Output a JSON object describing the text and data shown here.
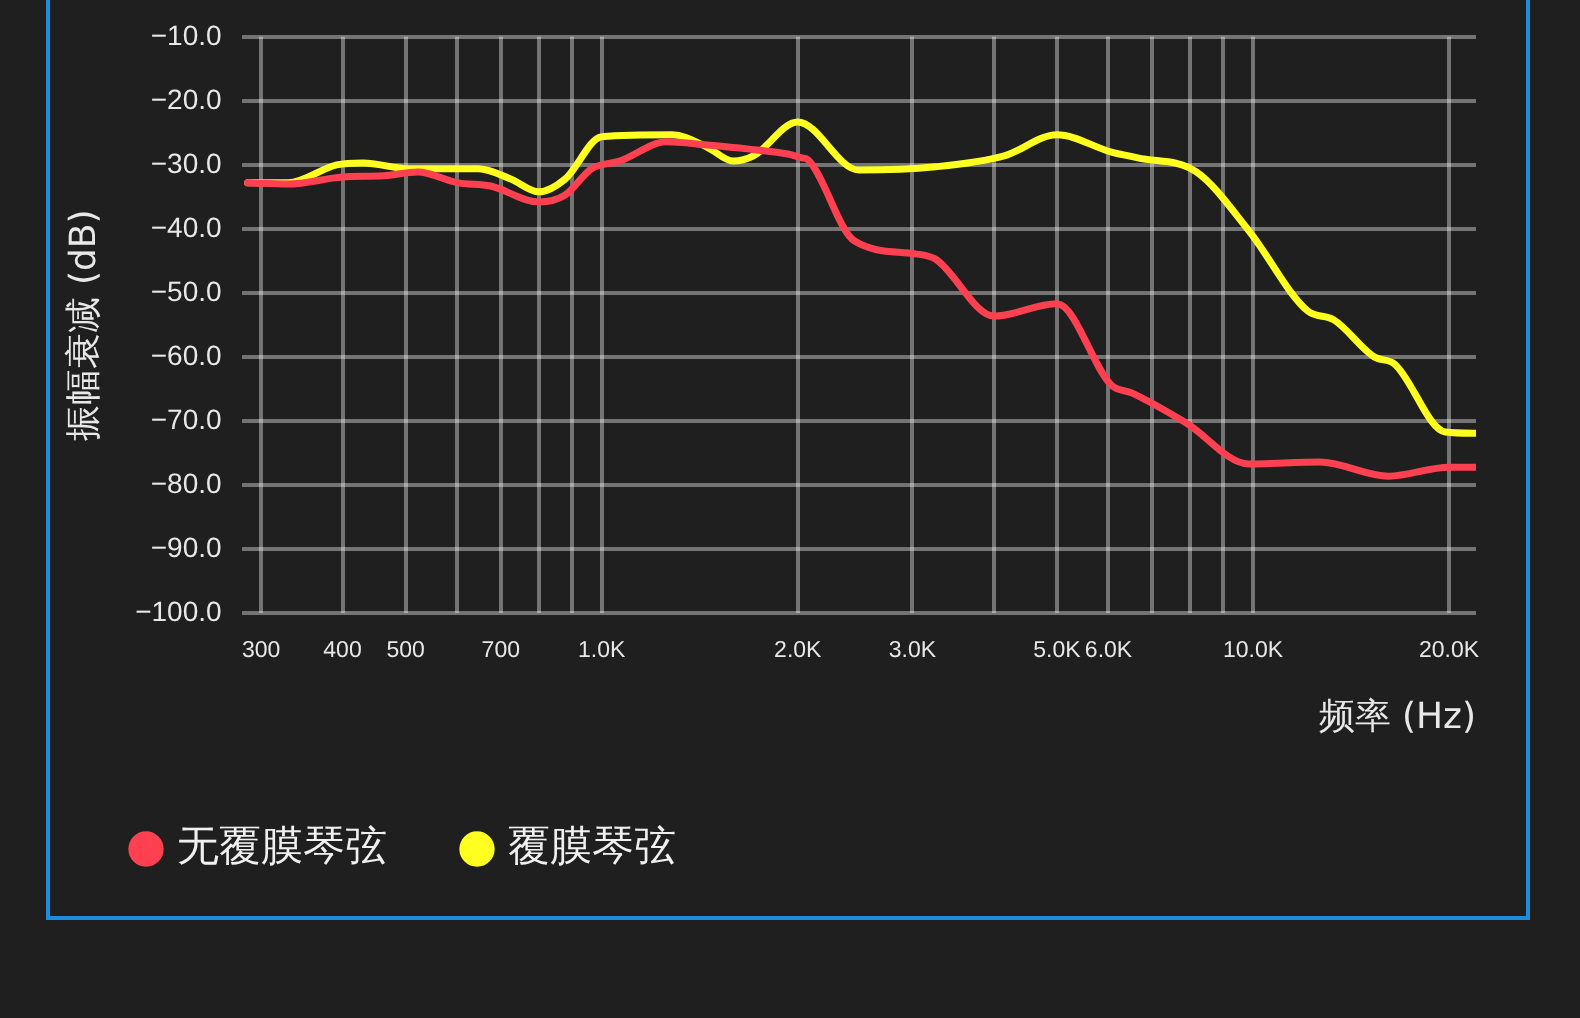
{
  "chart_data": {
    "type": "line",
    "xlabel": "频率 (Hz)",
    "ylabel": "振幅衰减 (dB)",
    "log": "x",
    "grid": true,
    "legend": "bottom left",
    "marker": "none",
    "line_style": "solid",
    "xlim": [
      280,
      22000
    ],
    "ylim": [
      -100,
      -10
    ],
    "xticks": [
      300,
      400,
      500,
      {
        "value": 600,
        "label": null
      },
      700,
      {
        "value": 800,
        "label": null
      },
      {
        "value": 900,
        "label": null
      },
      {
        "value": 1000,
        "label": "1.0K"
      },
      {
        "value": 2000,
        "label": "2.0K"
      },
      {
        "value": 3000,
        "label": "3.0K"
      },
      {
        "value": 4000,
        "label": null
      },
      {
        "value": 5000,
        "label": "5.0K"
      },
      {
        "value": 6000,
        "label": "6.0K"
      },
      {
        "value": 7000,
        "label": null
      },
      {
        "value": 8000,
        "label": null
      },
      {
        "value": 9000,
        "label": null
      },
      {
        "value": 10000,
        "label": "10.0K"
      },
      {
        "value": 20000,
        "label": "20.0K"
      }
    ],
    "yticks": [
      {
        "value": -10,
        "label": "−10.0"
      },
      {
        "value": -20,
        "label": "−20.0"
      },
      {
        "value": -30,
        "label": "−30.0"
      },
      {
        "value": -40,
        "label": "−40.0"
      },
      {
        "value": -50,
        "label": "−50.0"
      },
      {
        "value": -60,
        "label": "−60.0"
      },
      {
        "value": -70,
        "label": "−70.0"
      },
      {
        "value": -80,
        "label": "−80.0"
      },
      {
        "value": -90,
        "label": "−90.0"
      },
      {
        "value": -100,
        "label": "−100.0"
      }
    ],
    "series": [
      {
        "name": "无覆膜琴弦",
        "color": "#ff4050",
        "x": [
          286,
          330,
          400,
          462,
          522,
          602,
          675,
          801,
          879,
          965,
          1066,
          1257,
          1450,
          1673,
          1931,
          2030,
          2074,
          2445,
          3030,
          3253,
          4005,
          5000,
          6063,
          6512,
          7898,
          9858,
          12660,
          16150,
          20000,
          21960
        ],
        "values": [
          -32.8,
          -33,
          -31.9,
          -31.7,
          -31.1,
          -32.8,
          -33.3,
          -35.8,
          -34.7,
          -30.6,
          -29.4,
          -26.4,
          -26.9,
          -27.5,
          -28.3,
          -28.9,
          -29.2,
          -41.9,
          -43.9,
          -44.7,
          -53.6,
          -51.7,
          -64.4,
          -65.6,
          -70.3,
          -76.7,
          -76.4,
          -78.6,
          -77.2,
          -77.2
        ]
      },
      {
        "name": "覆膜琴弦",
        "color": "#ffff20",
        "x": [
          286,
          330,
          392,
          430,
          507,
          647,
          725,
          801,
          879,
          1000,
          1284,
          1450,
          1592,
          1710,
          2000,
          2480,
          3253,
          4150,
          5000,
          6063,
          6653,
          8185,
          9858,
          12130,
          13310,
          15360,
          16500,
          19730,
          21960
        ],
        "values": [
          -32.8,
          -32.8,
          -30,
          -29.7,
          -30.6,
          -30.6,
          -32.2,
          -34.2,
          -32.2,
          -25.6,
          -25.3,
          -27.2,
          -29.4,
          -28.6,
          -23.3,
          -30.8,
          -30.3,
          -28.6,
          -25.3,
          -28,
          -28.9,
          -31.1,
          -40.3,
          -52.8,
          -54.2,
          -60,
          -61.1,
          -71.7,
          -71.9
        ]
      }
    ]
  }
}
